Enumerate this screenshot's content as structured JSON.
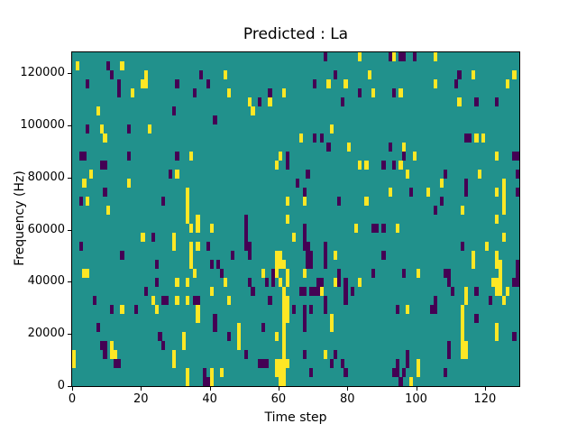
{
  "chart_data": {
    "type": "heatmap",
    "title": "Predicted : La",
    "xlabel": "Time step",
    "ylabel": "Frequency (Hz)",
    "x_ticks": [
      0,
      20,
      40,
      60,
      80,
      100,
      120
    ],
    "y_ticks": [
      0,
      20000,
      40000,
      60000,
      80000,
      100000,
      120000
    ],
    "xlim": [
      0,
      130
    ],
    "ylim": [
      0,
      128000
    ],
    "grid": {
      "cols": 130,
      "rows": 37
    },
    "legend": "none",
    "colormap": {
      "name": "viridis-3-level",
      "palette": [
        "#440154",
        "#21918c",
        "#fde725"
      ],
      "background_value_index": 1
    },
    "cells_format": "[col,row,palette_index] col 0..129 from left, row 0..36 from bottom; background teal cells omitted",
    "cells": [
      [
        1,
        35,
        2
      ],
      [
        10,
        35,
        0
      ],
      [
        14,
        35,
        2
      ],
      [
        11,
        34,
        0
      ],
      [
        21,
        34,
        2
      ],
      [
        21,
        33,
        2
      ],
      [
        4,
        33,
        0
      ],
      [
        13,
        33,
        0
      ],
      [
        13,
        32,
        0
      ],
      [
        20,
        33,
        2
      ],
      [
        30,
        33,
        0
      ],
      [
        37,
        34,
        0
      ],
      [
        39,
        33,
        0
      ],
      [
        44,
        34,
        2
      ],
      [
        17,
        32,
        2
      ],
      [
        35,
        32,
        0
      ],
      [
        7,
        30,
        2
      ],
      [
        29,
        30,
        0
      ],
      [
        41,
        29,
        0
      ],
      [
        4,
        28,
        0
      ],
      [
        8,
        28,
        2
      ],
      [
        9,
        27,
        2
      ],
      [
        16,
        28,
        0
      ],
      [
        22,
        28,
        2
      ],
      [
        2,
        25,
        0
      ],
      [
        3,
        25,
        0
      ],
      [
        16,
        25,
        0
      ],
      [
        30,
        25,
        0
      ],
      [
        34,
        25,
        2
      ],
      [
        9,
        24,
        0
      ],
      [
        73,
        36,
        0
      ],
      [
        83,
        36,
        2
      ],
      [
        76,
        34,
        0
      ],
      [
        86,
        34,
        2
      ],
      [
        70,
        33,
        0
      ],
      [
        74,
        33,
        2
      ],
      [
        79,
        33,
        2
      ],
      [
        83,
        32,
        0
      ],
      [
        87,
        32,
        2
      ],
      [
        45,
        32,
        2
      ],
      [
        57,
        32,
        0
      ],
      [
        61,
        32,
        2
      ],
      [
        51,
        31,
        2
      ],
      [
        54,
        31,
        0
      ],
      [
        57,
        31,
        2
      ],
      [
        78,
        31,
        0
      ],
      [
        52,
        30,
        2
      ],
      [
        70,
        27,
        0
      ],
      [
        72,
        27,
        0
      ],
      [
        66,
        27,
        2
      ],
      [
        75,
        28,
        2
      ],
      [
        74,
        26,
        0
      ],
      [
        80,
        26,
        2
      ],
      [
        60,
        25,
        2
      ],
      [
        62,
        25,
        0
      ],
      [
        92,
        36,
        0
      ],
      [
        93,
        36,
        2
      ],
      [
        95,
        36,
        0
      ],
      [
        96,
        36,
        0
      ],
      [
        99,
        36,
        0
      ],
      [
        105,
        36,
        2
      ],
      [
        128,
        34,
        2
      ],
      [
        112,
        34,
        0
      ],
      [
        116,
        34,
        2
      ],
      [
        105,
        33,
        2
      ],
      [
        111,
        33,
        0
      ],
      [
        126,
        33,
        2
      ],
      [
        93,
        32,
        0
      ],
      [
        95,
        32,
        2
      ],
      [
        112,
        31,
        2
      ],
      [
        117,
        31,
        0
      ],
      [
        123,
        31,
        0
      ],
      [
        114,
        27,
        0
      ],
      [
        115,
        27,
        0
      ],
      [
        117,
        27,
        2
      ],
      [
        119,
        27,
        2
      ],
      [
        92,
        26,
        0
      ],
      [
        96,
        26,
        2
      ],
      [
        96,
        25,
        0
      ],
      [
        99,
        25,
        2
      ],
      [
        123,
        25,
        2
      ],
      [
        128,
        25,
        0
      ],
      [
        129,
        25,
        0
      ],
      [
        90,
        24,
        0
      ],
      [
        8,
        24,
        0
      ],
      [
        5,
        23,
        2
      ],
      [
        28,
        23,
        0
      ],
      [
        30,
        23,
        2
      ],
      [
        3,
        22,
        2
      ],
      [
        16,
        22,
        2
      ],
      [
        9,
        21,
        0
      ],
      [
        33,
        21,
        2
      ],
      [
        33,
        20,
        2
      ],
      [
        33,
        19,
        2
      ],
      [
        33,
        18,
        2
      ],
      [
        2,
        20,
        0
      ],
      [
        4,
        20,
        2
      ],
      [
        26,
        20,
        0
      ],
      [
        10,
        19,
        2
      ],
      [
        36,
        18,
        2
      ],
      [
        34,
        17,
        2
      ],
      [
        36,
        17,
        2
      ],
      [
        40,
        17,
        2
      ],
      [
        20,
        16,
        2
      ],
      [
        23,
        16,
        0
      ],
      [
        29,
        16,
        2
      ],
      [
        29,
        15,
        2
      ],
      [
        34,
        15,
        2
      ],
      [
        36,
        15,
        2
      ],
      [
        39,
        15,
        0
      ],
      [
        2,
        15,
        0
      ],
      [
        14,
        14,
        0
      ],
      [
        24,
        13,
        0
      ],
      [
        34,
        14,
        2
      ],
      [
        34,
        13,
        2
      ],
      [
        35,
        12,
        2
      ],
      [
        40,
        13,
        0
      ],
      [
        42,
        13,
        0
      ],
      [
        3,
        12,
        2
      ],
      [
        43,
        12,
        0
      ],
      [
        59,
        24,
        2
      ],
      [
        62,
        24,
        0
      ],
      [
        83,
        24,
        2
      ],
      [
        85,
        24,
        2
      ],
      [
        68,
        23,
        0
      ],
      [
        65,
        22,
        0
      ],
      [
        67,
        21,
        0
      ],
      [
        67,
        20,
        2
      ],
      [
        62,
        20,
        2
      ],
      [
        77,
        20,
        0
      ],
      [
        85,
        20,
        2
      ],
      [
        62,
        18,
        2
      ],
      [
        67,
        17,
        0
      ],
      [
        67,
        16,
        0
      ],
      [
        67,
        15,
        0
      ],
      [
        82,
        17,
        2
      ],
      [
        87,
        17,
        0
      ],
      [
        88,
        17,
        0
      ],
      [
        64,
        16,
        2
      ],
      [
        50,
        18,
        0
      ],
      [
        50,
        17,
        0
      ],
      [
        50,
        16,
        0
      ],
      [
        50,
        15,
        0
      ],
      [
        51,
        15,
        0
      ],
      [
        51,
        14,
        0
      ],
      [
        46,
        14,
        0
      ],
      [
        59,
        14,
        2
      ],
      [
        60,
        14,
        2
      ],
      [
        59,
        13,
        2
      ],
      [
        60,
        13,
        2
      ],
      [
        61,
        13,
        2
      ],
      [
        58,
        11,
        0
      ],
      [
        59,
        12,
        2
      ],
      [
        68,
        15,
        0
      ],
      [
        68,
        14,
        0
      ],
      [
        69,
        14,
        0
      ],
      [
        69,
        13,
        0
      ],
      [
        68,
        13,
        0
      ],
      [
        73,
        15,
        0
      ],
      [
        73,
        14,
        0
      ],
      [
        73,
        13,
        0
      ],
      [
        76,
        14,
        2
      ],
      [
        77,
        12,
        0
      ],
      [
        67,
        12,
        2
      ],
      [
        55,
        12,
        2
      ],
      [
        58,
        12,
        0
      ],
      [
        62,
        12,
        2
      ],
      [
        87,
        12,
        0
      ],
      [
        93,
        24,
        0
      ],
      [
        95,
        24,
        2
      ],
      [
        97,
        23,
        2
      ],
      [
        108,
        23,
        0
      ],
      [
        118,
        23,
        2
      ],
      [
        129,
        23,
        0
      ],
      [
        114,
        22,
        0
      ],
      [
        114,
        21,
        0
      ],
      [
        107,
        22,
        2
      ],
      [
        98,
        21,
        0
      ],
      [
        92,
        21,
        2
      ],
      [
        103,
        21,
        2
      ],
      [
        123,
        21,
        2
      ],
      [
        125,
        22,
        2
      ],
      [
        125,
        21,
        2
      ],
      [
        125,
        20,
        2
      ],
      [
        125,
        19,
        2
      ],
      [
        129,
        21,
        0
      ],
      [
        107,
        20,
        0
      ],
      [
        105,
        19,
        0
      ],
      [
        113,
        19,
        2
      ],
      [
        94,
        17,
        2
      ],
      [
        90,
        17,
        0
      ],
      [
        123,
        18,
        2
      ],
      [
        125,
        16,
        2
      ],
      [
        90,
        14,
        0
      ],
      [
        113,
        15,
        0
      ],
      [
        116,
        14,
        2
      ],
      [
        116,
        13,
        2
      ],
      [
        120,
        15,
        2
      ],
      [
        123,
        14,
        2
      ],
      [
        123,
        13,
        2
      ],
      [
        124,
        13,
        2
      ],
      [
        124,
        12,
        2
      ],
      [
        129,
        13,
        0
      ],
      [
        96,
        12,
        0
      ],
      [
        100,
        12,
        2
      ],
      [
        108,
        12,
        0
      ],
      [
        129,
        12,
        0
      ],
      [
        4,
        12,
        2
      ],
      [
        33,
        11,
        2
      ],
      [
        24,
        11,
        0
      ],
      [
        30,
        11,
        2
      ],
      [
        44,
        11,
        2
      ],
      [
        21,
        10,
        0
      ],
      [
        6,
        9,
        0
      ],
      [
        23,
        9,
        2
      ],
      [
        26,
        9,
        0
      ],
      [
        27,
        9,
        0
      ],
      [
        30,
        9,
        2
      ],
      [
        33,
        9,
        2
      ],
      [
        35,
        9,
        0
      ],
      [
        36,
        9,
        0
      ],
      [
        40,
        10,
        2
      ],
      [
        11,
        8,
        0
      ],
      [
        14,
        8,
        2
      ],
      [
        18,
        8,
        0
      ],
      [
        24,
        8,
        2
      ],
      [
        36,
        8,
        2
      ],
      [
        36,
        7,
        2
      ],
      [
        41,
        7,
        0
      ],
      [
        41,
        6,
        0
      ],
      [
        7,
        6,
        0
      ],
      [
        25,
        5,
        0
      ],
      [
        32,
        5,
        2
      ],
      [
        32,
        4,
        2
      ],
      [
        26,
        4,
        0
      ],
      [
        8,
        4,
        0
      ],
      [
        9,
        4,
        0
      ],
      [
        9,
        3,
        0
      ],
      [
        11,
        4,
        2
      ],
      [
        11,
        3,
        2
      ],
      [
        12,
        3,
        2
      ],
      [
        0,
        3,
        2
      ],
      [
        0,
        2,
        2
      ],
      [
        12,
        2,
        0
      ],
      [
        13,
        2,
        0
      ],
      [
        29,
        3,
        2
      ],
      [
        29,
        2,
        2
      ],
      [
        33,
        1,
        2
      ],
      [
        33,
        0,
        2
      ],
      [
        38,
        1,
        0
      ],
      [
        38,
        0,
        0
      ],
      [
        39,
        0,
        0
      ],
      [
        40,
        0,
        2
      ],
      [
        40,
        1,
        2
      ],
      [
        43,
        1,
        2
      ],
      [
        51,
        11,
        0
      ],
      [
        56,
        11,
        0
      ],
      [
        60,
        11,
        2
      ],
      [
        62,
        11,
        2
      ],
      [
        71,
        11,
        0
      ],
      [
        72,
        11,
        0
      ],
      [
        77,
        11,
        0
      ],
      [
        83,
        11,
        2
      ],
      [
        79,
        11,
        0
      ],
      [
        76,
        11,
        2
      ],
      [
        52,
        10,
        0
      ],
      [
        69,
        10,
        0
      ],
      [
        70,
        10,
        0
      ],
      [
        71,
        10,
        0
      ],
      [
        72,
        10,
        2
      ],
      [
        79,
        10,
        0
      ],
      [
        79,
        9,
        0
      ],
      [
        66,
        10,
        0
      ],
      [
        67,
        10,
        0
      ],
      [
        81,
        10,
        0
      ],
      [
        45,
        9,
        2
      ],
      [
        57,
        9,
        0
      ],
      [
        67,
        8,
        0
      ],
      [
        67,
        7,
        0
      ],
      [
        67,
        6,
        0
      ],
      [
        73,
        9,
        0
      ],
      [
        64,
        8,
        0
      ],
      [
        69,
        8,
        0
      ],
      [
        73,
        8,
        0
      ],
      [
        61,
        10,
        2
      ],
      [
        61,
        9,
        2
      ],
      [
        61,
        8,
        2
      ],
      [
        61,
        7,
        2
      ],
      [
        61,
        6,
        2
      ],
      [
        61,
        5,
        2
      ],
      [
        61,
        4,
        2
      ],
      [
        62,
        9,
        2
      ],
      [
        62,
        8,
        2
      ],
      [
        62,
        7,
        2
      ],
      [
        48,
        6,
        2
      ],
      [
        48,
        5,
        2
      ],
      [
        48,
        4,
        2
      ],
      [
        55,
        6,
        0
      ],
      [
        75,
        7,
        2
      ],
      [
        75,
        6,
        2
      ],
      [
        45,
        5,
        0
      ],
      [
        59,
        5,
        2
      ],
      [
        67,
        3,
        0
      ],
      [
        73,
        3,
        2
      ],
      [
        76,
        3,
        0
      ],
      [
        78,
        2,
        0
      ],
      [
        50,
        3,
        0
      ],
      [
        54,
        2,
        0
      ],
      [
        55,
        2,
        0
      ],
      [
        56,
        2,
        0
      ],
      [
        59,
        2,
        2
      ],
      [
        60,
        2,
        2
      ],
      [
        59,
        1,
        2
      ],
      [
        60,
        1,
        2
      ],
      [
        60,
        0,
        2
      ],
      [
        61,
        1,
        2
      ],
      [
        61,
        0,
        2
      ],
      [
        69,
        1,
        0
      ],
      [
        79,
        1,
        0
      ],
      [
        75,
        2,
        0
      ],
      [
        61,
        3,
        2
      ],
      [
        61,
        2,
        2
      ],
      [
        62,
        2,
        2
      ],
      [
        109,
        12,
        0
      ],
      [
        109,
        11,
        0
      ],
      [
        122,
        11,
        2
      ],
      [
        123,
        11,
        2
      ],
      [
        124,
        11,
        2
      ],
      [
        123,
        10,
        2
      ],
      [
        124,
        10,
        2
      ],
      [
        128,
        11,
        0
      ],
      [
        129,
        11,
        0
      ],
      [
        110,
        10,
        0
      ],
      [
        114,
        10,
        2
      ],
      [
        114,
        9,
        2
      ],
      [
        117,
        10,
        0
      ],
      [
        126,
        10,
        2
      ],
      [
        121,
        9,
        0
      ],
      [
        125,
        9,
        2
      ],
      [
        105,
        9,
        0
      ],
      [
        105,
        8,
        0
      ],
      [
        104,
        8,
        0
      ],
      [
        94,
        8,
        0
      ],
      [
        97,
        8,
        2
      ],
      [
        113,
        8,
        2
      ],
      [
        113,
        7,
        2
      ],
      [
        113,
        6,
        2
      ],
      [
        113,
        5,
        2
      ],
      [
        117,
        7,
        0
      ],
      [
        123,
        6,
        2
      ],
      [
        123,
        5,
        2
      ],
      [
        128,
        5,
        0
      ],
      [
        109,
        4,
        0
      ],
      [
        109,
        3,
        0
      ],
      [
        113,
        4,
        2
      ],
      [
        113,
        3,
        2
      ],
      [
        114,
        4,
        2
      ],
      [
        114,
        3,
        2
      ],
      [
        97,
        3,
        0
      ],
      [
        97,
        2,
        0
      ],
      [
        94,
        2,
        0
      ],
      [
        94,
        1,
        0
      ],
      [
        100,
        2,
        2
      ],
      [
        100,
        1,
        2
      ],
      [
        108,
        1,
        0
      ],
      [
        93,
        1,
        0
      ],
      [
        96,
        1,
        0
      ],
      [
        98,
        0,
        2
      ],
      [
        95,
        0,
        0
      ]
    ]
  }
}
